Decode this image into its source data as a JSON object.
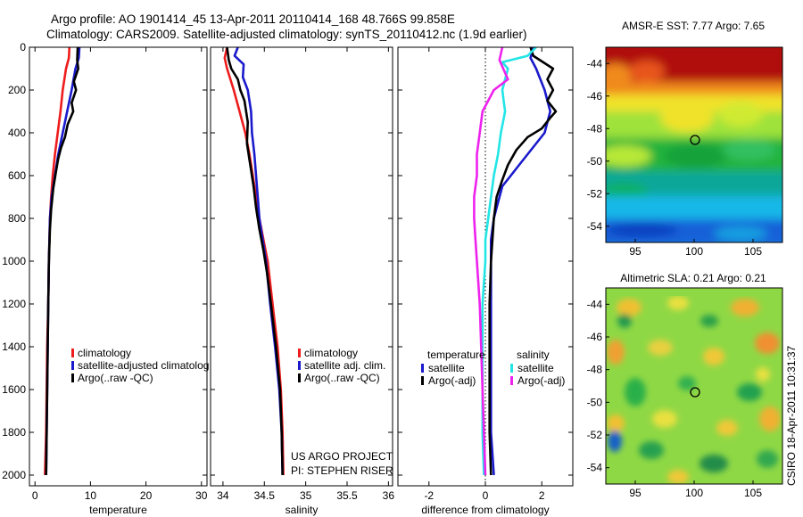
{
  "header": {
    "line1": "Argo profile: AO 1901414_45 13-Apr-2011 20110414_168 48.766S 99.858E",
    "line2": "Climatology: CARS2009. Satellite-adjusted climatology: synTS_20110412.nc (1.9d earlier)"
  },
  "credit": {
    "line1": "US ARGO PROJECT",
    "line2": "PI: STEPHEN RISER"
  },
  "timestamp": "CSIRO 18-Apr-2011 10:31:37",
  "colors": {
    "climatology": "#ee1c1c",
    "satellite": "#1a1acc",
    "argo": "#000000",
    "sal_satellite": "#22e5e5",
    "sal_argo": "#ee22ee"
  },
  "chart_data": [
    {
      "type": "line",
      "xlabel": "temperature",
      "ylim": [
        2050,
        0
      ],
      "xlim": [
        -1,
        31
      ],
      "xticks": [
        0,
        10,
        20,
        30
      ],
      "yticks": [
        0,
        200,
        400,
        600,
        800,
        1000,
        1200,
        1400,
        1600,
        1800,
        2000
      ],
      "legend": [
        "climatology",
        "satellite-adjusted climatolog",
        "Argo(..raw -QC)"
      ],
      "series": [
        {
          "name": "climatology",
          "color": "#ee1c1c",
          "points": [
            [
              6.2,
              0
            ],
            [
              6.1,
              50
            ],
            [
              5.6,
              100
            ],
            [
              5.0,
              200
            ],
            [
              4.6,
              300
            ],
            [
              4.1,
              400
            ],
            [
              3.6,
              500
            ],
            [
              3.2,
              600
            ],
            [
              2.9,
              700
            ],
            [
              2.7,
              800
            ],
            [
              2.6,
              900
            ],
            [
              2.5,
              1000
            ],
            [
              2.4,
              1200
            ],
            [
              2.2,
              1400
            ],
            [
              2.1,
              1600
            ],
            [
              2.0,
              1800
            ],
            [
              1.8,
              2000
            ]
          ]
        },
        {
          "name": "satellite-adjusted climatolog",
          "color": "#1a1acc",
          "points": [
            [
              8.0,
              0
            ],
            [
              7.9,
              50
            ],
            [
              7.3,
              100
            ],
            [
              6.6,
              200
            ],
            [
              5.8,
              300
            ],
            [
              5.0,
              400
            ],
            [
              4.2,
              500
            ],
            [
              3.6,
              600
            ],
            [
              3.0,
              700
            ],
            [
              2.7,
              800
            ],
            [
              2.6,
              900
            ],
            [
              2.5,
              1000
            ],
            [
              2.4,
              1200
            ],
            [
              2.3,
              1400
            ],
            [
              2.2,
              1600
            ],
            [
              2.1,
              1800
            ],
            [
              2.0,
              2000
            ]
          ]
        },
        {
          "name": "Argo(..raw -QC)",
          "color": "#000000",
          "points": [
            [
              7.7,
              0
            ],
            [
              7.6,
              60
            ],
            [
              7.8,
              100
            ],
            [
              7.0,
              160
            ],
            [
              7.4,
              200
            ],
            [
              6.6,
              260
            ],
            [
              6.9,
              300
            ],
            [
              5.9,
              360
            ],
            [
              5.4,
              420
            ],
            [
              4.7,
              470
            ],
            [
              4.2,
              520
            ],
            [
              3.8,
              580
            ],
            [
              3.3,
              660
            ],
            [
              2.9,
              760
            ],
            [
              2.7,
              850
            ],
            [
              2.5,
              1000
            ],
            [
              2.4,
              1200
            ],
            [
              2.3,
              1400
            ],
            [
              2.2,
              1600
            ],
            [
              2.1,
              1800
            ],
            [
              2.0,
              2000
            ]
          ]
        }
      ]
    },
    {
      "type": "line",
      "xlabel": "salinity",
      "ylim": [
        2050,
        0
      ],
      "xlim": [
        33.85,
        36.05
      ],
      "xticks": [
        34,
        34.5,
        35,
        35.5,
        36
      ],
      "yticks": [
        0,
        200,
        400,
        600,
        800,
        1000,
        1200,
        1400,
        1600,
        1800,
        2000
      ],
      "legend": [
        "climatology",
        "satellite adj. clim.",
        "Argo(..raw -QC)"
      ],
      "series": [
        {
          "name": "climatology",
          "color": "#ee1c1c",
          "points": [
            [
              34.05,
              0
            ],
            [
              34.02,
              50
            ],
            [
              34.05,
              100
            ],
            [
              34.13,
              200
            ],
            [
              34.2,
              300
            ],
            [
              34.27,
              400
            ],
            [
              34.32,
              500
            ],
            [
              34.36,
              600
            ],
            [
              34.4,
              700
            ],
            [
              34.44,
              800
            ],
            [
              34.49,
              900
            ],
            [
              34.54,
              1000
            ],
            [
              34.6,
              1200
            ],
            [
              34.66,
              1400
            ],
            [
              34.7,
              1600
            ],
            [
              34.72,
              1800
            ],
            [
              34.73,
              2000
            ]
          ]
        },
        {
          "name": "satellite adj. clim.",
          "color": "#1a1acc",
          "points": [
            [
              34.18,
              0
            ],
            [
              34.14,
              40
            ],
            [
              34.25,
              80
            ],
            [
              34.24,
              140
            ],
            [
              34.3,
              200
            ],
            [
              34.34,
              300
            ],
            [
              34.35,
              400
            ],
            [
              34.38,
              500
            ],
            [
              34.4,
              600
            ],
            [
              34.42,
              700
            ],
            [
              34.44,
              800
            ],
            [
              34.48,
              900
            ],
            [
              34.52,
              1000
            ],
            [
              34.57,
              1200
            ],
            [
              34.63,
              1400
            ],
            [
              34.68,
              1600
            ],
            [
              34.71,
              1800
            ],
            [
              34.72,
              2000
            ]
          ]
        },
        {
          "name": "Argo(..raw -QC)",
          "color": "#000000",
          "points": [
            [
              34.05,
              0
            ],
            [
              34.07,
              60
            ],
            [
              34.1,
              100
            ],
            [
              34.18,
              150
            ],
            [
              34.21,
              200
            ],
            [
              34.26,
              250
            ],
            [
              34.3,
              350
            ],
            [
              34.29,
              450
            ],
            [
              34.33,
              550
            ],
            [
              34.37,
              650
            ],
            [
              34.4,
              750
            ],
            [
              34.44,
              850
            ],
            [
              34.49,
              950
            ],
            [
              34.53,
              1050
            ],
            [
              34.58,
              1200
            ],
            [
              34.64,
              1400
            ],
            [
              34.69,
              1600
            ],
            [
              34.71,
              1800
            ],
            [
              34.72,
              2000
            ]
          ]
        }
      ]
    },
    {
      "type": "line",
      "xlabel": "difference from climatology",
      "ylim": [
        2050,
        0
      ],
      "xlim": [
        -3.1,
        3.1
      ],
      "xticks": [
        -2,
        0,
        2
      ],
      "yticks": [
        0,
        200,
        400,
        600,
        800,
        1000,
        1200,
        1400,
        1600,
        1800,
        2000
      ],
      "legend_groups": [
        {
          "title": "temperature",
          "items": [
            "satellite",
            "Argo(-adj)"
          ]
        },
        {
          "title": "salinity",
          "items": [
            "satellite",
            "Argo(-adj)"
          ]
        }
      ],
      "series": [
        {
          "name": "temperature satellite",
          "color": "#1a1acc",
          "points": [
            [
              1.7,
              0
            ],
            [
              1.6,
              50
            ],
            [
              1.8,
              100
            ],
            [
              2.1,
              200
            ],
            [
              2.3,
              300
            ],
            [
              2.1,
              400
            ],
            [
              1.8,
              450
            ],
            [
              1.5,
              500
            ],
            [
              1.2,
              550
            ],
            [
              0.9,
              600
            ],
            [
              0.6,
              650
            ],
            [
              0.5,
              700
            ],
            [
              0.4,
              750
            ],
            [
              0.3,
              800
            ],
            [
              0.2,
              900
            ],
            [
              0.2,
              1000
            ],
            [
              0.2,
              1200
            ],
            [
              0.2,
              1400
            ],
            [
              0.2,
              1600
            ],
            [
              0.2,
              1800
            ],
            [
              0.3,
              2000
            ]
          ]
        },
        {
          "name": "temperature Argo(-adj)",
          "color": "#000000",
          "points": [
            [
              1.6,
              0
            ],
            [
              1.7,
              40
            ],
            [
              2.4,
              100
            ],
            [
              2.2,
              150
            ],
            [
              2.4,
              200
            ],
            [
              2.2,
              250
            ],
            [
              2.5,
              300
            ],
            [
              2.3,
              330
            ],
            [
              2.0,
              380
            ],
            [
              1.5,
              420
            ],
            [
              1.1,
              480
            ],
            [
              0.8,
              550
            ],
            [
              0.6,
              620
            ],
            [
              0.4,
              700
            ],
            [
              0.3,
              800
            ],
            [
              0.25,
              900
            ],
            [
              0.2,
              1000
            ],
            [
              0.15,
              1200
            ],
            [
              0.15,
              1400
            ],
            [
              0.15,
              1600
            ],
            [
              0.15,
              1800
            ],
            [
              0.2,
              2000
            ]
          ]
        },
        {
          "name": "salinity satellite",
          "color": "#22e5e5",
          "points": [
            [
              1.8,
              0
            ],
            [
              1.5,
              40
            ],
            [
              0.6,
              70
            ],
            [
              0.8,
              100
            ],
            [
              0.7,
              150
            ],
            [
              0.6,
              200
            ],
            [
              0.65,
              250
            ],
            [
              0.7,
              300
            ],
            [
              0.55,
              400
            ],
            [
              0.45,
              500
            ],
            [
              0.3,
              600
            ],
            [
              0.2,
              700
            ],
            [
              0.1,
              800
            ],
            [
              0.0,
              900
            ],
            [
              0.0,
              1000
            ],
            [
              -0.1,
              1200
            ],
            [
              -0.1,
              1400
            ],
            [
              -0.1,
              1600
            ],
            [
              -0.1,
              1800
            ],
            [
              -0.05,
              2000
            ]
          ]
        },
        {
          "name": "salinity Argo(-adj)",
          "color": "#ee22ee",
          "points": [
            [
              0.6,
              0
            ],
            [
              0.5,
              60
            ],
            [
              0.8,
              150
            ],
            [
              0.3,
              200
            ],
            [
              -0.1,
              300
            ],
            [
              -0.2,
              400
            ],
            [
              -0.3,
              500
            ],
            [
              -0.3,
              600
            ],
            [
              -0.4,
              700
            ],
            [
              -0.4,
              800
            ],
            [
              -0.35,
              900
            ],
            [
              -0.3,
              1000
            ],
            [
              -0.2,
              1200
            ],
            [
              -0.15,
              1400
            ],
            [
              -0.1,
              1600
            ],
            [
              -0.05,
              1800
            ],
            [
              0.0,
              2000
            ]
          ]
        }
      ]
    },
    {
      "type": "heatmap",
      "title": "AMSR-E SST: 7.77  Argo: 7.65",
      "xticks": [
        95,
        100,
        105
      ],
      "yticks": [
        -44,
        -46,
        -48,
        -50,
        -52,
        -54
      ],
      "xlim": [
        92.5,
        107.5
      ],
      "ylim": [
        -55,
        -43
      ],
      "marker": [
        99.86,
        -48.77
      ]
    },
    {
      "type": "heatmap",
      "title": "Altimetric SLA: 0.21  Argo: 0.21",
      "xticks": [
        95,
        100,
        105
      ],
      "yticks": [
        -44,
        -46,
        -48,
        -50,
        -52,
        -54
      ],
      "xlim": [
        92.5,
        107.5
      ],
      "ylim": [
        -55,
        -43
      ],
      "marker": [
        99.86,
        -48.77
      ]
    }
  ]
}
